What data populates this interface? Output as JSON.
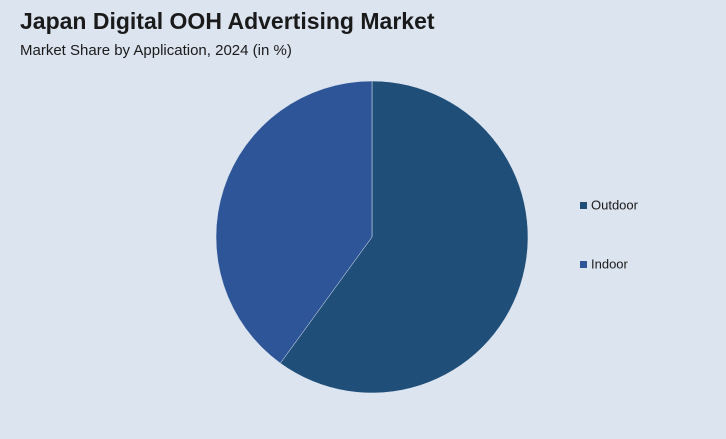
{
  "chart_data": {
    "type": "pie",
    "title": "Japan Digital OOH Advertising Market",
    "subtitle": "Market Share by Application, 2024 (in %)",
    "categories": [
      "Outdoor",
      "Indoor"
    ],
    "values": [
      60,
      40
    ],
    "colors": [
      "#1f4e79",
      "#2e5597"
    ],
    "legend": "right"
  }
}
